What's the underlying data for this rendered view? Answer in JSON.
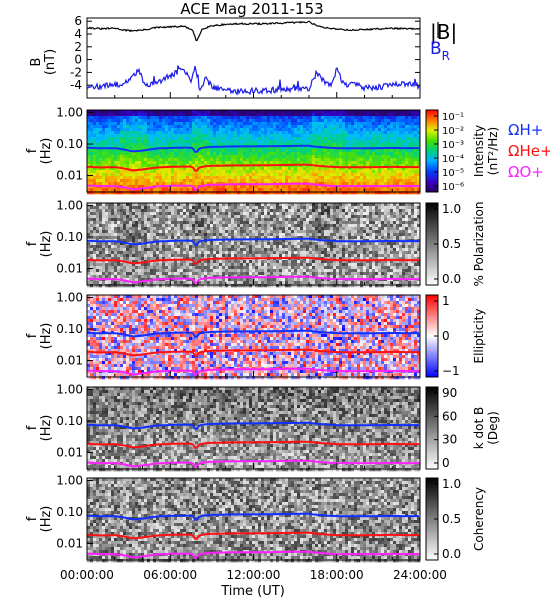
{
  "title": "ACE Mag 2011-153",
  "colors": {
    "h_plus": "#1030ff",
    "he_plus": "#ff1010",
    "o_plus": "#ff20ff",
    "b_total": "#000000",
    "b_r": "#1a1ae6"
  },
  "chart_data": [
    {
      "type": "line",
      "panel": "magnetic-field",
      "ylabel": "B",
      "yunit": "(nT)",
      "yticks": [
        "6",
        "4",
        "2",
        "0",
        "-2",
        "-4"
      ],
      "ylim": [
        -6,
        6.5
      ],
      "xlim_hours": [
        0,
        24
      ],
      "series": [
        {
          "name": "|B|",
          "color": "#000000",
          "x": [
            0,
            1,
            2,
            3,
            4,
            5,
            6,
            7,
            7.6,
            7.9,
            8.3,
            9,
            10,
            11,
            12,
            13,
            14,
            15,
            16,
            16.4,
            17,
            18,
            19,
            20,
            21,
            22,
            23,
            24
          ],
          "values": [
            5.0,
            4.8,
            4.9,
            4.5,
            4.6,
            5.0,
            5.1,
            5.2,
            4.6,
            2.8,
            4.8,
            5.3,
            5.5,
            5.6,
            5.6,
            5.6,
            5.7,
            5.8,
            5.9,
            5.5,
            5.0,
            4.8,
            4.6,
            4.7,
            4.8,
            4.9,
            4.8,
            4.8
          ]
        },
        {
          "name": "B_R",
          "color": "#1a1ae6",
          "x": [
            0,
            1,
            2,
            3,
            3.7,
            4.2,
            5,
            6,
            7,
            7.5,
            7.8,
            8.1,
            8.6,
            9,
            10,
            11,
            12,
            13,
            14,
            15,
            16,
            16.5,
            17,
            17.6,
            18,
            18.6,
            19,
            20,
            21,
            22,
            23,
            24
          ],
          "values": [
            -4.4,
            -4.2,
            -4.0,
            -3.5,
            -1.5,
            -4.0,
            -3.8,
            -2.5,
            -1.5,
            -3.5,
            -1.0,
            -4.5,
            -3.0,
            -4.2,
            -4.8,
            -5.0,
            -4.9,
            -4.8,
            -4.7,
            -4.6,
            -4.5,
            -2.2,
            -3.2,
            -4.0,
            -1.5,
            -4.2,
            -3.5,
            -4.4,
            -4.3,
            -4.0,
            -3.8,
            -4.2
          ]
        }
      ]
    },
    {
      "type": "heatmap",
      "panel": "intensity",
      "ylabel": "f",
      "yunit": "(Hz)",
      "yscale": "log",
      "yticks": [
        "1.00",
        "0.10",
        "0.01"
      ],
      "colorbar": {
        "label": "Intensity",
        "unit": "(nT²/Hz)",
        "ticks": [
          "10⁻¹",
          "10⁻²",
          "10⁻³",
          "10⁻⁴",
          "10⁻⁵",
          "10⁻⁶"
        ],
        "scale": "rainbow"
      },
      "legend": [
        {
          "label": "ΩH+",
          "color": "#1030ff"
        },
        {
          "label": "ΩHe+",
          "color": "#ff1010"
        },
        {
          "label": "ΩO+",
          "color": "#ff20ff"
        }
      ]
    },
    {
      "type": "heatmap",
      "panel": "polarization",
      "ylabel": "f",
      "yunit": "(Hz)",
      "yscale": "log",
      "yticks": [
        "1.00",
        "0.10",
        "0.01"
      ],
      "colorbar": {
        "label": "% Polarization",
        "ticks": [
          "1.0",
          "0.5",
          "0.0"
        ],
        "scale": "gray"
      }
    },
    {
      "type": "heatmap",
      "panel": "ellipticity",
      "ylabel": "f",
      "yunit": "(Hz)",
      "yscale": "log",
      "yticks": [
        "1.00",
        "0.10",
        "0.01"
      ],
      "colorbar": {
        "label": "Ellipticity",
        "ticks": [
          "1",
          "0",
          "−1"
        ],
        "scale": "bwr"
      }
    },
    {
      "type": "heatmap",
      "panel": "k-dot-b",
      "ylabel": "f",
      "yunit": "(Hz)",
      "yscale": "log",
      "yticks": [
        "1.00",
        "0.10",
        "0.01"
      ],
      "colorbar": {
        "label": "k dot B",
        "unit": "(Deg)",
        "ticks": [
          "90",
          "60",
          "30",
          "0"
        ],
        "scale": "gray"
      }
    },
    {
      "type": "heatmap",
      "panel": "coherency",
      "ylabel": "f",
      "yunit": "(Hz)",
      "yscale": "log",
      "yticks": [
        "1.00",
        "0.10",
        "0.01"
      ],
      "colorbar": {
        "label": "Coherency",
        "ticks": [
          "1.0",
          "0.5",
          "0.0"
        ],
        "scale": "gray"
      }
    }
  ],
  "gyrofrequency_lines": {
    "x": [
      0,
      1,
      2,
      2.6,
      3.3,
      4.0,
      5,
      6,
      7,
      7.6,
      7.85,
      8.1,
      8.6,
      9,
      10,
      11,
      12,
      13,
      14,
      15,
      16,
      16.2,
      16.8,
      17.5,
      18,
      19,
      20,
      21,
      22,
      23,
      24
    ],
    "h_plus_hz": [
      0.076,
      0.073,
      0.074,
      0.068,
      0.058,
      0.062,
      0.072,
      0.075,
      0.077,
      0.076,
      0.05,
      0.073,
      0.079,
      0.081,
      0.083,
      0.084,
      0.084,
      0.085,
      0.086,
      0.087,
      0.088,
      0.085,
      0.08,
      0.076,
      0.074,
      0.073,
      0.073,
      0.074,
      0.075,
      0.074,
      0.074
    ],
    "he_plus_hz": [
      0.019,
      0.018,
      0.0185,
      0.017,
      0.0145,
      0.0155,
      0.018,
      0.0188,
      0.0193,
      0.019,
      0.0125,
      0.0183,
      0.0198,
      0.0203,
      0.0208,
      0.021,
      0.021,
      0.0213,
      0.0215,
      0.0218,
      0.022,
      0.0213,
      0.02,
      0.019,
      0.0185,
      0.0183,
      0.0183,
      0.0185,
      0.0188,
      0.0185,
      0.0185
    ],
    "o_plus_hz": [
      0.0048,
      0.0046,
      0.0046,
      0.0043,
      0.0036,
      0.0039,
      0.0045,
      0.0047,
      0.0048,
      0.0047,
      0.0031,
      0.0046,
      0.0049,
      0.0051,
      0.0052,
      0.0053,
      0.0053,
      0.0053,
      0.0054,
      0.0055,
      0.0055,
      0.0053,
      0.005,
      0.0047,
      0.0046,
      0.0046,
      0.0046,
      0.0046,
      0.0047,
      0.0046,
      0.0046
    ]
  },
  "xaxis": {
    "label": "Time (UT)",
    "ticks": [
      "00:00:00",
      "06:00:00",
      "12:00:00",
      "18:00:00",
      "24:00:00"
    ],
    "range_hours": [
      0,
      24
    ]
  }
}
